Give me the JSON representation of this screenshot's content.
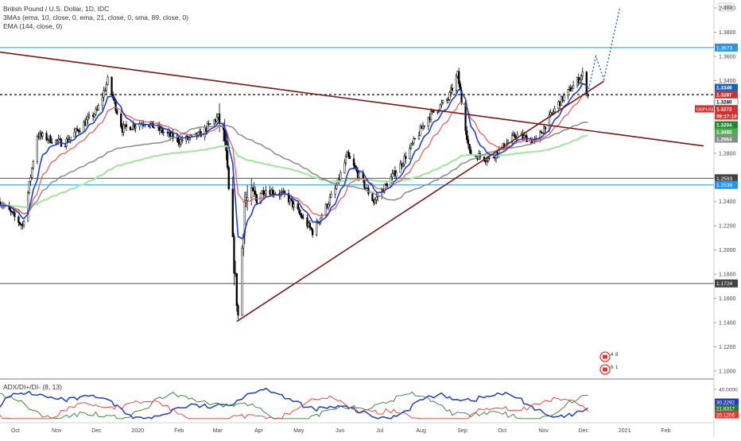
{
  "chart_data": [
    {
      "type": "line",
      "panel": "price",
      "title": "British Pound / U.S. Dollar, 1D, IDC",
      "indicators": [
        "3MAs (ema, 10, close, 0, ema, 21, close, 0, sma, 89, close, 0)",
        "EMA (144, close, 0)"
      ],
      "currency_label": "USD",
      "y_axis_ticks": [
        "1.4000",
        "1.3800",
        "1.3600",
        "1.3400",
        "1.3200",
        "1.3000",
        "1.2800",
        "1.2600",
        "1.2400",
        "1.2200",
        "1.2000",
        "1.1800",
        "1.1600",
        "1.1400",
        "1.1200",
        "1.1000"
      ],
      "x_axis_ticks": [
        "Oct",
        "Nov",
        "Dec",
        "2020",
        "Feb",
        "Mar",
        "Apr",
        "May",
        "Jun",
        "Jul",
        "Aug",
        "Sep",
        "Oct",
        "Nov",
        "Dec",
        "2021",
        "Feb"
      ],
      "ylim": [
        1.09,
        1.405
      ],
      "grid": false,
      "horizontal_levels": [
        {
          "value": 1.3673,
          "label": "1.3673",
          "style": "solid",
          "color": "#2196f3"
        },
        {
          "value": 1.3287,
          "label": "1.3287",
          "style": "dashed",
          "color": "#555555"
        },
        {
          "value": 1.328,
          "label": "1.3280",
          "style": "dashed",
          "color": "#555555"
        },
        {
          "value": 1.2593,
          "label": "1.2593",
          "style": "solid",
          "color": "#555555"
        },
        {
          "value": 1.2538,
          "label": "1.2538",
          "style": "solid",
          "color": "#2196f3"
        },
        {
          "value": 1.1724,
          "label": "1.1724",
          "style": "solid",
          "color": "#555555"
        }
      ],
      "trendlines": [
        {
          "name": "descending",
          "x": [
            "2019-09-20",
            "2021-03-05"
          ],
          "y": [
            1.364,
            1.286
          ],
          "color": "#7b1616"
        },
        {
          "name": "ascending",
          "x": [
            "2020-03-19",
            "2020-12-20"
          ],
          "y": [
            1.141,
            1.3395
          ],
          "color": "#7b1616"
        }
      ],
      "projection": {
        "x": [
          "2020-12-08",
          "2020-12-14",
          "2020-12-20",
          "2021-01-01"
        ],
        "y": [
          1.33,
          1.36,
          1.341,
          1.4
        ],
        "color": "#1565c0"
      },
      "price_labels": [
        {
          "text": "1.3349",
          "bg": "#1565c0",
          "fg": "#ffffff"
        },
        {
          "text": "1.3287",
          "bg": "#d32f2f",
          "fg": "#ffffff"
        },
        {
          "text": "1.3280",
          "bg": "#ffffff",
          "fg": "#000000"
        },
        {
          "text": "1.3272",
          "bg": "#d32f2f",
          "fg": "#ffffff",
          "tag": "GBPUSD"
        },
        {
          "text": "09:17:10",
          "bg": "#d32f2f",
          "fg": "#ffffff"
        },
        {
          "text": "1.3204",
          "bg": "#1b8e2a",
          "fg": "#ffffff"
        },
        {
          "text": "1.3085",
          "bg": "#4caf50",
          "fg": "#ffffff"
        },
        {
          "text": "1.2964",
          "bg": "#8a8a8a",
          "fg": "#ffffff"
        }
      ],
      "event_icons": [
        {
          "top": "4",
          "right": "8"
        },
        {
          "top": "6",
          "right": "1"
        }
      ],
      "series": [
        {
          "name": "GBPUSD",
          "kind": "candlestick",
          "color_up": "#000000",
          "color_down": "#000000",
          "anchors_x": [
            "2019-09-23",
            "2019-10-10",
            "2019-10-21",
            "2019-11-10",
            "2019-12-05",
            "2019-12-13",
            "2019-12-24",
            "2020-01-10",
            "2020-02-05",
            "2020-02-20",
            "2020-03-05",
            "2020-03-10",
            "2020-03-20",
            "2020-03-25",
            "2020-04-10",
            "2020-04-25",
            "2020-05-15",
            "2020-06-01",
            "2020-06-10",
            "2020-06-30",
            "2020-07-20",
            "2020-08-10",
            "2020-08-25",
            "2020-09-01",
            "2020-09-10",
            "2020-09-25",
            "2020-10-15",
            "2020-10-30",
            "2020-11-15",
            "2020-12-04",
            "2020-12-08"
          ],
          "anchors_y": [
            1.24,
            1.22,
            1.295,
            1.288,
            1.315,
            1.34,
            1.3,
            1.306,
            1.29,
            1.295,
            1.31,
            1.29,
            1.145,
            1.24,
            1.25,
            1.245,
            1.215,
            1.25,
            1.278,
            1.24,
            1.27,
            1.31,
            1.325,
            1.345,
            1.28,
            1.275,
            1.295,
            1.29,
            1.32,
            1.345,
            1.3272
          ]
        },
        {
          "name": "EMA 10",
          "color": "#1e3fcf"
        },
        {
          "name": "EMA 21",
          "color": "#ef5350"
        },
        {
          "name": "SMA 89",
          "color": "#8a8a8a"
        },
        {
          "name": "EMA 144",
          "color": "#a5e6a0"
        }
      ]
    },
    {
      "type": "line",
      "panel": "adx",
      "title": "ADX/DI+/DI- (8, 13)",
      "y_axis_ticks": [
        "40.0000"
      ],
      "ylim": [
        15,
        45
      ],
      "series": [
        {
          "name": "ADX",
          "color": "#1f3fbf",
          "last": "30.2292"
        },
        {
          "name": "DI+",
          "color": "#2e7d32",
          "last": "21.8317"
        },
        {
          "name": "DI-",
          "color": "#e53935",
          "last": "20.1206"
        }
      ]
    }
  ]
}
